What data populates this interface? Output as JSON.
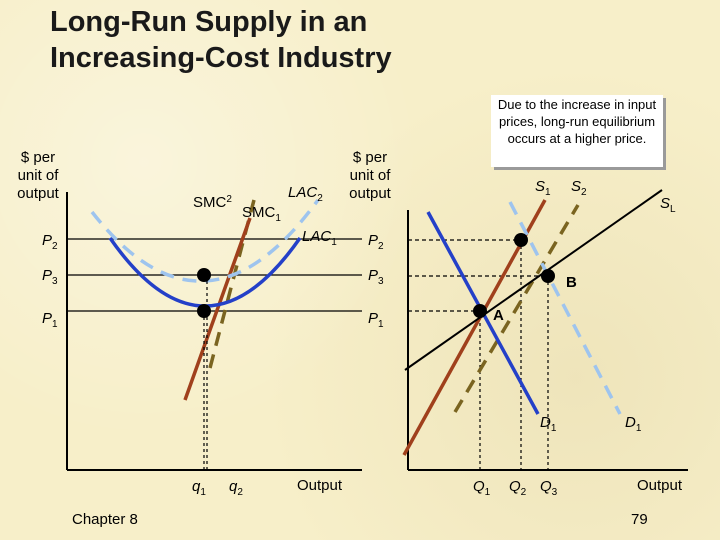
{
  "title": {
    "line1": "Long-Run Supply in an",
    "line2": "Increasing-Cost Industry"
  },
  "callout": {
    "text": "Due to the increase in input prices, long-run equilibrium occurs at a higher price."
  },
  "left_panel": {
    "y_axis_label": [
      "$ per",
      "unit of",
      "output"
    ],
    "x_axis_label": "Output",
    "curves": {
      "smc2": "SMC",
      "smc1": "SMC",
      "lac2": "LAC",
      "lac1": "LAC"
    },
    "price_labels": [
      "P",
      "P",
      "P"
    ],
    "quantity_labels": [
      "q",
      "q"
    ]
  },
  "right_panel": {
    "y_axis_label": [
      "$ per",
      "unit of",
      "output"
    ],
    "x_axis_label": "Output",
    "curves": {
      "s1": "S",
      "s2": "S",
      "sl": "S",
      "d1_a": "D",
      "d1_b": "D"
    },
    "price_labels": [
      "P",
      "P",
      "P"
    ],
    "points": {
      "a": "A",
      "b": "B"
    },
    "quantity_labels": [
      "Q",
      "Q",
      "Q"
    ]
  },
  "subscripts": {
    "one": "1",
    "two": "2",
    "three": "3",
    "long": "L"
  },
  "footer": {
    "chapter": "Chapter 8",
    "page": "79"
  },
  "colors": {
    "background": "#f7efc9",
    "brown": "#a0401c",
    "blue": "#2440c8",
    "olive": "#7a6420",
    "light_blue": "#9ec4ee",
    "axis": "#000000"
  }
}
